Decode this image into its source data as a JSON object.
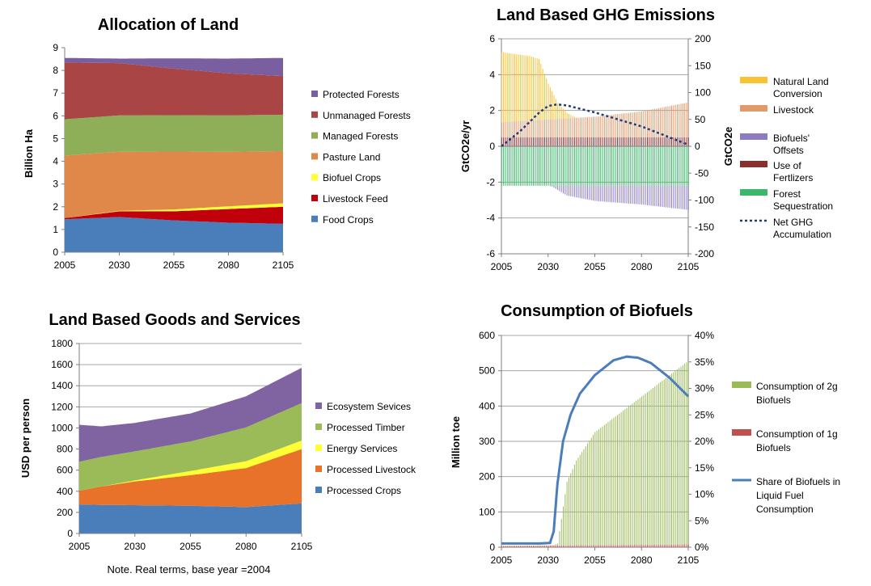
{
  "chart_data": [
    {
      "id": "land",
      "type": "area",
      "title": "Allocation of Land",
      "ylabel": "Billion Ha",
      "xlabel": "",
      "ylim": [
        0,
        9
      ],
      "yticks": [
        "0",
        "1",
        "2",
        "3",
        "4",
        "5",
        "6",
        "7",
        "8",
        "9"
      ],
      "xticks": [
        "2005",
        "2030",
        "2055",
        "2080",
        "2105"
      ],
      "x": [
        2005,
        2030,
        2055,
        2080,
        2105
      ],
      "stacked": true,
      "legend_position": "right",
      "series": [
        {
          "name": "Food Crops",
          "color": "#4A7EBB",
          "values": [
            1.45,
            1.55,
            1.4,
            1.3,
            1.25
          ]
        },
        {
          "name": "Livestock Feed",
          "color": "#C0000B",
          "values": [
            0.05,
            0.25,
            0.4,
            0.6,
            0.75
          ]
        },
        {
          "name": "Biofuel Crops",
          "color": "#FFFF33",
          "values": [
            0.0,
            0.02,
            0.08,
            0.12,
            0.15
          ]
        },
        {
          "name": "Pasture Land",
          "color": "#E0884A",
          "values": [
            2.75,
            2.6,
            2.55,
            2.4,
            2.3
          ]
        },
        {
          "name": "Managed Forests",
          "color": "#8FAE58",
          "values": [
            1.6,
            1.6,
            1.6,
            1.6,
            1.6
          ]
        },
        {
          "name": "Unmanaged Forests",
          "color": "#A94545",
          "values": [
            2.5,
            2.3,
            2.05,
            1.85,
            1.7
          ]
        },
        {
          "name": "Protected Forests",
          "color": "#7A5FA0",
          "values": [
            0.2,
            0.2,
            0.45,
            0.65,
            0.8
          ]
        }
      ]
    },
    {
      "id": "ghg",
      "type": "bar",
      "title": "Land Based GHG Emissions",
      "ylabel": "GtCO2e/yr",
      "ylabel_right": "GtCO2e",
      "ylim": [
        -6,
        6
      ],
      "ylim_right": [
        -200,
        200
      ],
      "yticks": [
        "-6",
        "-4",
        "-2",
        "0",
        "2",
        "4",
        "6"
      ],
      "yticks_right": [
        "-200",
        "-150",
        "-100",
        "-50",
        "0",
        "50",
        "100",
        "150",
        "200"
      ],
      "xticks": [
        "2005",
        "2030",
        "2055",
        "2080",
        "2105"
      ],
      "legend_position": "right",
      "series": [
        {
          "name": "Natural Land Conversion",
          "color": "#F9C233",
          "type": "bar",
          "x": [
            2005,
            2020,
            2025,
            2030,
            2035,
            2040,
            2045
          ],
          "values": [
            3.9,
            3.6,
            3.4,
            2.0,
            0.9,
            0.3,
            0.0
          ]
        },
        {
          "name": "Livestock",
          "color": "#E09A6B",
          "type": "bar",
          "x": [
            2005,
            2030,
            2055,
            2080,
            2105
          ],
          "values": [
            0.85,
            1.0,
            1.15,
            1.45,
            1.95
          ]
        },
        {
          "name": "Biofuels' Offsets",
          "color": "#8E7CC3",
          "type": "bar",
          "x": [
            2005,
            2030,
            2032,
            2040,
            2055,
            2080,
            2105
          ],
          "values": [
            0.0,
            0.0,
            -0.05,
            -0.55,
            -0.85,
            -1.05,
            -1.35
          ]
        },
        {
          "name": "Use of Fertlizers",
          "color": "#8B2E2E",
          "type": "bar",
          "x": [
            2005,
            2030,
            2055,
            2080,
            2105
          ],
          "values": [
            0.5,
            0.5,
            0.5,
            0.5,
            0.5
          ]
        },
        {
          "name": "Forest Sequestration",
          "color": "#3DB86A",
          "type": "bar",
          "x": [
            2005,
            2030,
            2055,
            2080,
            2105
          ],
          "values": [
            -2.2,
            -2.2,
            -2.2,
            -2.2,
            -2.2
          ]
        },
        {
          "name": "Net GHG Accumulation",
          "color": "#1F3D7A",
          "type": "line",
          "axis": "right",
          "x": [
            2005,
            2015,
            2025,
            2030,
            2035,
            2040,
            2055,
            2080,
            2105
          ],
          "values": [
            0,
            28,
            62,
            75,
            78,
            76,
            63,
            37,
            3
          ]
        }
      ]
    },
    {
      "id": "goods",
      "type": "area",
      "title": "Land Based Goods and Services",
      "ylabel": "USD per person",
      "note": "Note. Real terms, base year =2004",
      "ylim": [
        0,
        1800
      ],
      "yticks": [
        "0",
        "200",
        "400",
        "600",
        "800",
        "1000",
        "1200",
        "1400",
        "1600",
        "1800"
      ],
      "xticks": [
        "2005",
        "2030",
        "2055",
        "2080",
        "2105"
      ],
      "x": [
        2005,
        2015,
        2030,
        2055,
        2080,
        2105
      ],
      "stacked": true,
      "legend_position": "right",
      "series": [
        {
          "name": "Processed Crops",
          "color": "#4A7EBB",
          "values": [
            275,
            270,
            268,
            262,
            250,
            285
          ]
        },
        {
          "name": "Processed Livestock",
          "color": "#E8722A",
          "values": [
            130,
            175,
            225,
            290,
            370,
            515
          ]
        },
        {
          "name": "Energy Services",
          "color": "#FFFF33",
          "values": [
            0,
            0,
            10,
            40,
            65,
            80
          ]
        },
        {
          "name": "Processed Timber",
          "color": "#9BBB59",
          "values": [
            275,
            280,
            275,
            280,
            320,
            355
          ]
        },
        {
          "name": "Ecosystem Sevices",
          "color": "#8064A2",
          "values": [
            350,
            290,
            270,
            265,
            295,
            335
          ]
        }
      ]
    },
    {
      "id": "biofuels",
      "type": "bar",
      "title": "Consumption of Biofuels",
      "ylabel": "Million toe",
      "ylim": [
        0,
        600
      ],
      "ylim_right": [
        0,
        40
      ],
      "yticks": [
        "0",
        "100",
        "200",
        "300",
        "400",
        "500",
        "600"
      ],
      "yticks_right": [
        "0%",
        "5%",
        "10%",
        "15%",
        "20%",
        "25%",
        "30%",
        "35%",
        "40%"
      ],
      "xticks": [
        "2005",
        "2030",
        "2055",
        "2080",
        "2105"
      ],
      "legend_position": "right",
      "series": [
        {
          "name": "Consumption of 2g Biofuels",
          "color": "#9BBB59",
          "type": "bar",
          "x": [
            2005,
            2032,
            2035,
            2040,
            2045,
            2055,
            2080,
            2105
          ],
          "values": [
            0,
            0,
            5,
            180,
            240,
            320,
            420,
            520
          ]
        },
        {
          "name": "Consumption of 1g Biofuels",
          "color": "#C0504D",
          "type": "bar",
          "x": [
            2005,
            2030,
            2055,
            2080,
            2105
          ],
          "values": [
            4,
            5,
            6,
            7,
            8
          ]
        },
        {
          "name": "Share of Biofuels in Liquid Fuel Consumption",
          "color": "#4A7EBB",
          "type": "line",
          "axis": "right",
          "x": [
            2005,
            2025,
            2031,
            2033,
            2035,
            2038,
            2042,
            2047,
            2055,
            2065,
            2072,
            2078,
            2085,
            2095,
            2105
          ],
          "values": [
            0.7,
            0.7,
            0.8,
            3,
            12,
            20,
            25,
            29,
            32.5,
            35.3,
            36,
            35.8,
            34.8,
            32,
            28.5
          ]
        }
      ]
    }
  ]
}
